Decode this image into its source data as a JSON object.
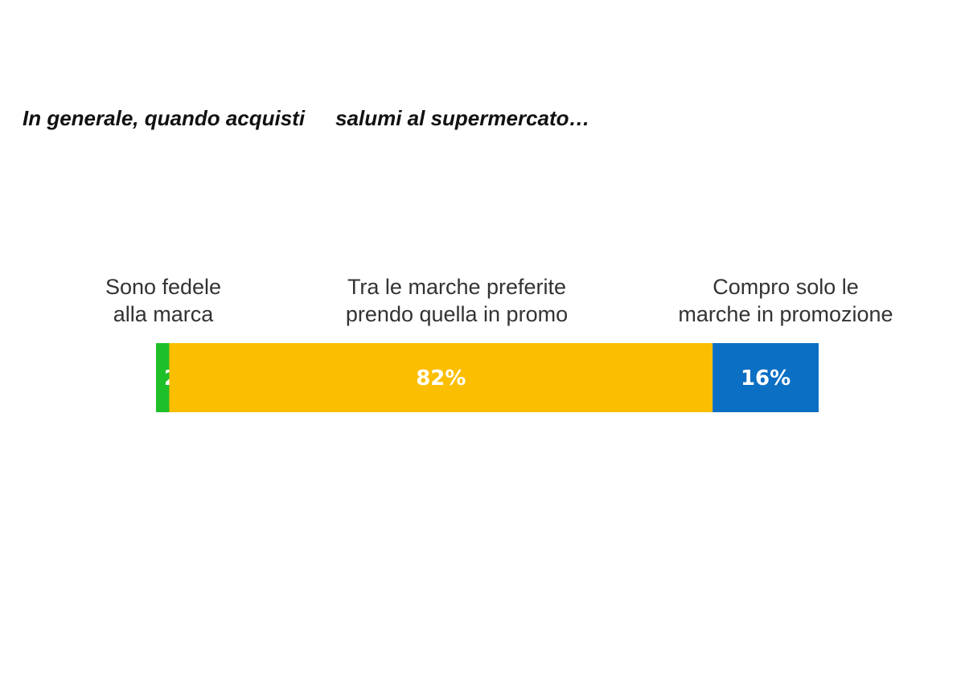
{
  "chart_data": {
    "type": "bar",
    "orientation": "horizontal-stacked",
    "title_part1": "In generale, quando acquisti",
    "title_part2": "salumi al supermercato…",
    "xlabel": "",
    "ylabel": "",
    "grid": false,
    "legend": "none",
    "xlim": [
      0,
      100
    ],
    "categories": [
      [
        "Sono fedele",
        "alla marca"
      ],
      [
        "Tra le marche preferite",
        "prendo quella in promo"
      ],
      [
        "Compro solo le",
        "marche in promozione"
      ]
    ],
    "values": [
      2,
      82,
      16
    ],
    "value_labels": [
      "2%",
      "82%",
      "16%"
    ],
    "colors": [
      "#1fbf2a",
      "#fbbe00",
      "#0b6fc4"
    ]
  }
}
